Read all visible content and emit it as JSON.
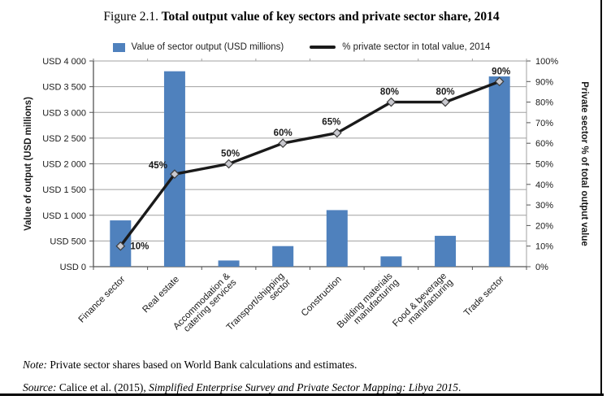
{
  "figure": {
    "title_prefix": "Figure 2.1.",
    "title_main": " Total output value of key sectors and private sector share, 2014",
    "note_label": "Note:",
    "note_text": " Private sector shares based on World Bank calculations and estimates.",
    "source_label": "Source:",
    "source_text": " Calice et al. (2015), ",
    "source_title_italic": "Simplified Enterprise Survey and Private Sector Mapping: Libya 2015",
    "source_suffix": "."
  },
  "legend": {
    "bar_label": "Value of sector output (USD millions)",
    "line_label": "% private sector in total value, 2014"
  },
  "colors": {
    "bar": "#4f81bd",
    "line": "#1a1a1a",
    "marker_fill": "#c9c9cf",
    "marker_stroke": "#3c3c3c",
    "grid": "#a0a0a0",
    "axis": "#555555",
    "text": "#1a1a1a"
  },
  "chart_data": {
    "type": "combo (bar + line, dual axis)",
    "title": "Total output value of key sectors and private sector share, 2014",
    "categories": [
      "Finance sector",
      "Real estate",
      "Accommodation & catering services",
      "Transport/shipping sector",
      "Construction",
      "Building materials manufacturing",
      "Food & beverage manufacturing",
      "Trade sector"
    ],
    "category_lines": [
      [
        "Finance sector"
      ],
      [
        "Real estate"
      ],
      [
        "Accommodation &",
        "catering services"
      ],
      [
        "Transport/shipping",
        "sector"
      ],
      [
        "Construction"
      ],
      [
        "Building materials",
        "manufacturing"
      ],
      [
        "Food & beverage",
        "manufacturing"
      ],
      [
        "Trade sector"
      ]
    ],
    "series": [
      {
        "name": "Value of sector output (USD millions)",
        "type": "bar",
        "axis": "left",
        "values": [
          900,
          3800,
          120,
          400,
          1100,
          200,
          600,
          3700
        ]
      },
      {
        "name": "% private sector in total value, 2014",
        "type": "line",
        "axis": "right",
        "values": [
          10,
          45,
          50,
          60,
          65,
          80,
          80,
          90
        ],
        "labels": [
          "10%",
          "45%",
          "50%",
          "60%",
          "65%",
          "80%",
          "80%",
          "90%"
        ]
      }
    ],
    "left_axis": {
      "title": "Value of output (USD millions)",
      "min": 0,
      "max": 4000,
      "step": 500,
      "ticks": [
        [
          "USD 0",
          0
        ],
        [
          "USD 500",
          500
        ],
        [
          "USD 1 000",
          1000
        ],
        [
          "USD 1 500",
          1500
        ],
        [
          "USD 2 000",
          2000
        ],
        [
          "USD 2 500",
          2500
        ],
        [
          "USD 3 000",
          3000
        ],
        [
          "USD 3 500",
          3500
        ],
        [
          "USD 4 000",
          4000
        ]
      ]
    },
    "right_axis": {
      "title": "Private sector % of total output value",
      "min": 0,
      "max": 100,
      "step": 10,
      "ticks": [
        [
          "0%",
          0
        ],
        [
          "10%",
          10
        ],
        [
          "20%",
          20
        ],
        [
          "30%",
          30
        ],
        [
          "40%",
          40
        ],
        [
          "50%",
          50
        ],
        [
          "60%",
          60
        ],
        [
          "70%",
          70
        ],
        [
          "80%",
          80
        ],
        [
          "90%",
          90
        ],
        [
          "100%",
          100
        ]
      ]
    },
    "grid": "horizontal gridlines at left-axis steps",
    "legend_position": "top center"
  }
}
